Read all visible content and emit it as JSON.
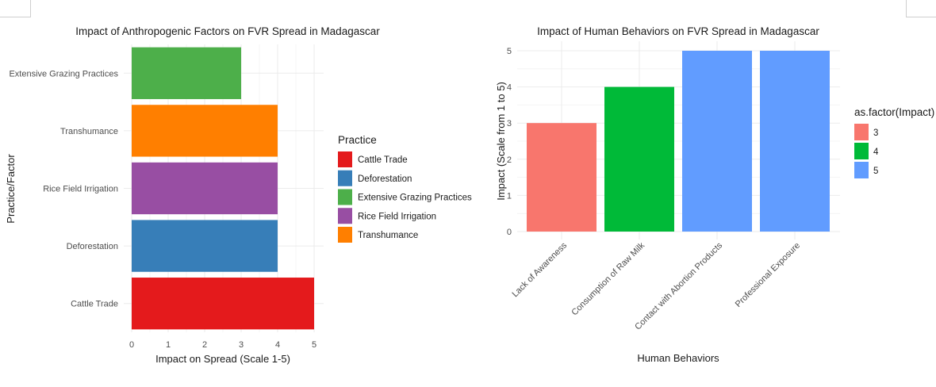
{
  "chart_data": [
    {
      "type": "bar",
      "orientation": "horizontal",
      "title": "Impact of Anthropogenic Factors on FVR Spread in Madagascar",
      "xlabel": "Impact on Spread (Scale 1-5)",
      "ylabel": "Practice/Factor",
      "categories": [
        "Cattle Trade",
        "Deforestation",
        "Rice Field Irrigation",
        "Transhumance",
        "Extensive Grazing Practices"
      ],
      "values": [
        5,
        4,
        4,
        4,
        3
      ],
      "colors": [
        "#E41A1C",
        "#377EB8",
        "#984EA3",
        "#FF7F00",
        "#4DAF4A"
      ],
      "xlim": [
        0,
        5
      ],
      "xticks": [
        "0",
        "1",
        "2",
        "3",
        "4",
        "5"
      ],
      "grid": true,
      "legend": {
        "title": "Practice",
        "position": "right",
        "items": [
          {
            "label": "Cattle Trade",
            "color": "#E41A1C"
          },
          {
            "label": "Deforestation",
            "color": "#377EB8"
          },
          {
            "label": "Extensive Grazing Practices",
            "color": "#4DAF4A"
          },
          {
            "label": "Rice Field Irrigation",
            "color": "#984EA3"
          },
          {
            "label": "Transhumance",
            "color": "#FF7F00"
          }
        ]
      }
    },
    {
      "type": "bar",
      "orientation": "vertical",
      "title": "Impact of Human Behaviors on FVR Spread in Madagascar",
      "xlabel": "Human Behaviors",
      "ylabel": "Impact (Scale from 1 to 5)",
      "categories": [
        "Lack of Awareness",
        "Consumption of Raw Milk",
        "Contact with Abortion Products",
        "Professional Exposure"
      ],
      "values": [
        3,
        4,
        5,
        5
      ],
      "colors": [
        "#F8766D",
        "#00BA38",
        "#619CFF",
        "#619CFF"
      ],
      "ylim": [
        0,
        5
      ],
      "yticks": [
        "0",
        "1",
        "2",
        "3",
        "4",
        "5"
      ],
      "grid": true,
      "legend": {
        "title": "as.factor(Impact)",
        "position": "right",
        "items": [
          {
            "label": "3",
            "color": "#F8766D"
          },
          {
            "label": "4",
            "color": "#00BA38"
          },
          {
            "label": "5",
            "color": "#619CFF"
          }
        ]
      }
    }
  ]
}
